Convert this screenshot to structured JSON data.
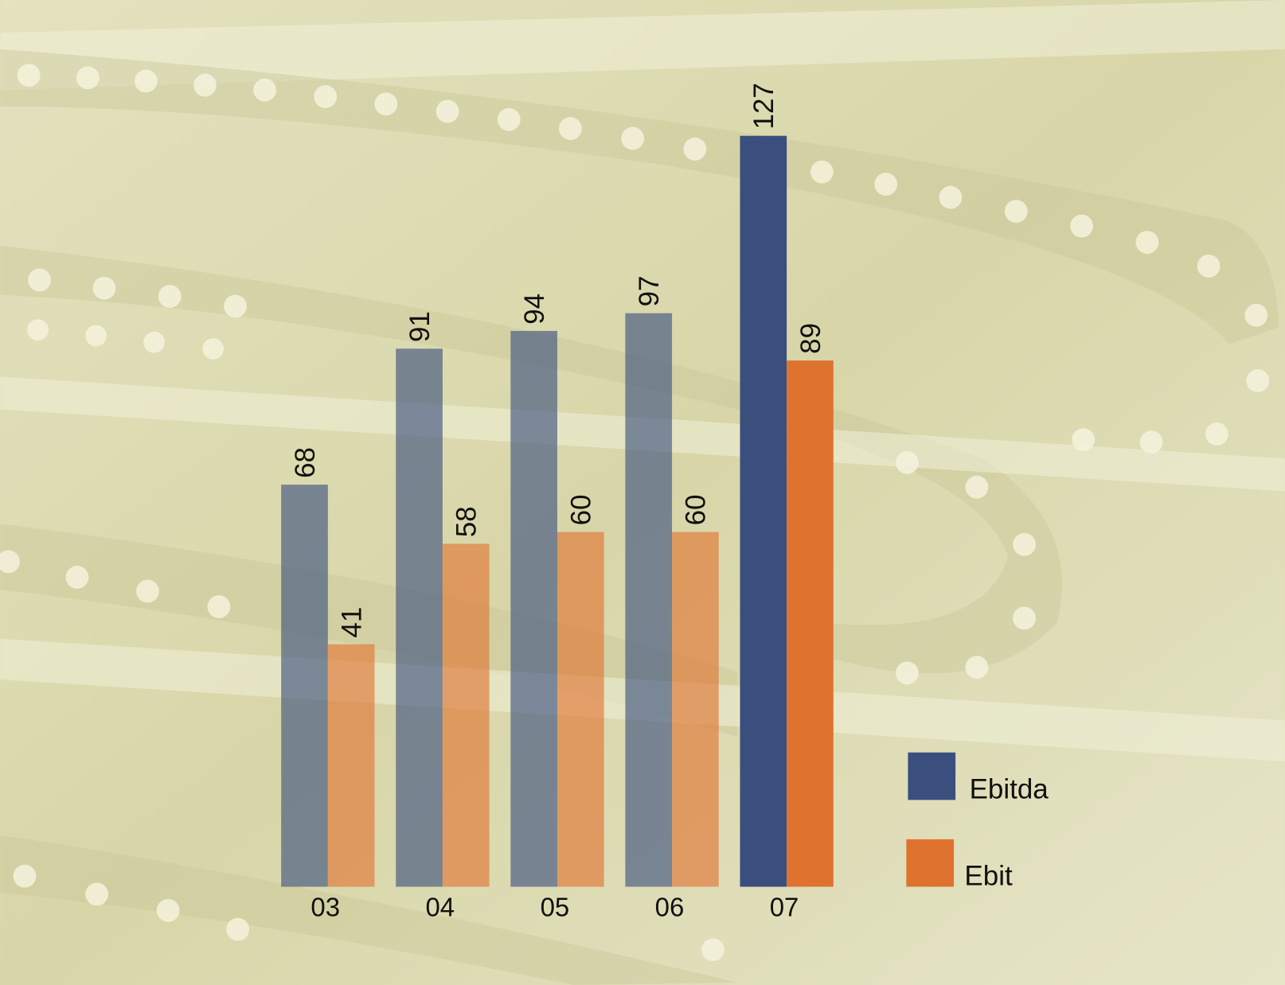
{
  "chart_data": {
    "type": "bar",
    "categories": [
      "03",
      "04",
      "05",
      "06",
      "07"
    ],
    "series": [
      {
        "name": "Ebitda",
        "color": "#3a4f7e",
        "values": [
          68,
          91,
          94,
          97,
          127
        ]
      },
      {
        "name": "Ebit",
        "color": "#e07230",
        "values": [
          41,
          58,
          60,
          60,
          89
        ]
      }
    ],
    "ylim": [
      0,
      140
    ]
  }
}
